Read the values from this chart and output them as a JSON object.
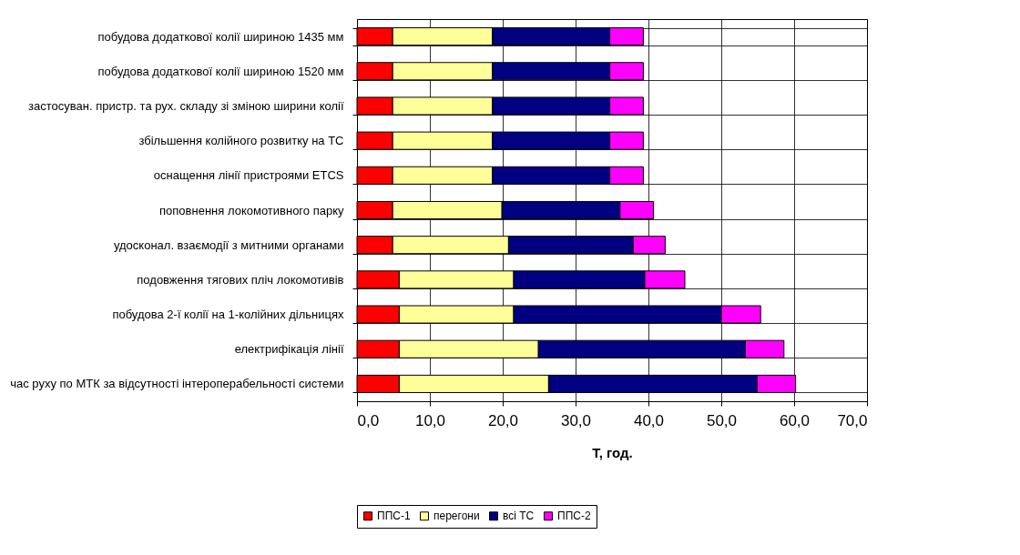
{
  "chart_data": {
    "type": "bar",
    "orientation": "horizontal",
    "stacked": true,
    "xlabel": "T, год.",
    "categories": [
      "побудова додаткової колії шириною 1435 мм",
      "побудова додаткової колії шириною 1520 мм",
      "застосуван. пристр. та рух. складу зі зміною ширини колії",
      "збільшення колійного розвитку на ТС",
      "оснащення лінії пристроями ETCS",
      "поповнення локомотивного парку",
      "удосконал. взаємодії з митними органами",
      "подовження тягових пліч локомотивів",
      "побудова 2-ї колії на 1-колійних дільницях",
      "електрифікація лінії",
      "час руху по МТК за відсутності інтероперабельності системи"
    ],
    "series": [
      {
        "name": "ППС-1",
        "color": "#ff0000",
        "values": [
          4.9,
          4.9,
          4.9,
          4.9,
          4.9,
          4.9,
          4.9,
          5.8,
          5.8,
          5.8,
          5.8
        ]
      },
      {
        "name": "перегони",
        "color": "#ffff99",
        "values": [
          13.7,
          13.7,
          13.7,
          13.7,
          13.7,
          15.0,
          15.9,
          15.7,
          15.7,
          19.1,
          20.5
        ]
      },
      {
        "name": "всі ТС",
        "color": "#000080",
        "values": [
          16.1,
          16.1,
          16.1,
          16.1,
          16.1,
          16.2,
          17.1,
          18.0,
          28.5,
          28.4,
          28.6
        ]
      },
      {
        "name": "ППС-2",
        "color": "#ff00ff",
        "values": [
          4.6,
          4.6,
          4.6,
          4.6,
          4.6,
          4.6,
          4.4,
          5.5,
          5.4,
          5.3,
          5.3
        ]
      }
    ],
    "xlim": [
      0,
      70
    ],
    "xticks": [
      {
        "value": 0,
        "label": "0,0"
      },
      {
        "value": 10,
        "label": "10,0"
      },
      {
        "value": 20,
        "label": "20,0"
      },
      {
        "value": 30,
        "label": "30,0"
      },
      {
        "value": 40,
        "label": "40,0"
      },
      {
        "value": 50,
        "label": "50,0"
      },
      {
        "value": 60,
        "label": "60,0"
      },
      {
        "value": 70,
        "label": "70,0"
      }
    ],
    "grid": true,
    "legend": "bottom"
  }
}
